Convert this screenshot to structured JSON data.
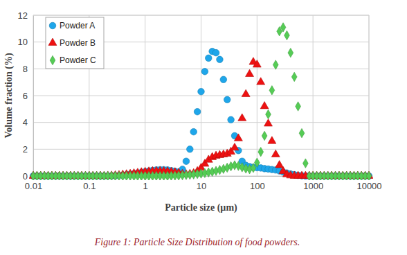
{
  "chart_data": {
    "type": "scatter",
    "caption": "Figure 1: Particle Size Distribution of food powders.",
    "x_label": "Particle size (µm)",
    "y_label": "Volume fraction (%)",
    "log": "x",
    "grid": true,
    "legend": "top-left",
    "xlim": [
      0.01,
      10000
    ],
    "xticks": [
      0.01,
      0.1,
      1,
      10,
      100,
      1000,
      10000
    ],
    "ylim": [
      0,
      12
    ],
    "yticks": [
      0,
      2,
      4,
      6,
      8,
      10,
      12
    ],
    "x": [
      0.01,
      0.01166,
      0.01359,
      0.01585,
      0.01848,
      0.02154,
      0.02512,
      0.02929,
      0.03415,
      0.03981,
      0.04642,
      0.05412,
      0.0631,
      0.07356,
      0.08577,
      0.1,
      0.1166,
      0.1359,
      0.1585,
      0.1848,
      0.2154,
      0.2512,
      0.2929,
      0.3415,
      0.3981,
      0.4642,
      0.5412,
      0.631,
      0.7356,
      0.8577,
      1,
      1.166,
      1.359,
      1.585,
      1.848,
      2.154,
      2.512,
      2.929,
      3.415,
      3.981,
      4.642,
      5.412,
      6.31,
      7.356,
      8.577,
      10,
      11.66,
      13.59,
      15.85,
      18.48,
      21.54,
      25.12,
      29.29,
      34.15,
      39.81,
      46.42,
      54.12,
      63.1,
      73.56,
      85.77,
      100,
      116.6,
      135.9,
      158.5,
      184.8,
      215.4,
      251.2,
      292.9,
      341.5,
      398.1,
      464.2,
      541.2,
      631,
      735.6,
      857.7,
      1000,
      1166,
      1359,
      1585,
      1848,
      2154,
      2512,
      2929,
      3415,
      3981,
      4642,
      5412,
      6310,
      7356,
      8577,
      10000
    ],
    "series": [
      {
        "name": "Powder A",
        "color": "#1ea6ea",
        "marker": "circle",
        "values": [
          0,
          0,
          0,
          0,
          0,
          0,
          0,
          0,
          0,
          0,
          0,
          0,
          0,
          0,
          0,
          0,
          0,
          0,
          0,
          0,
          0,
          0.01,
          0.02,
          0.04,
          0.06,
          0.09,
          0.13,
          0.17,
          0.22,
          0.27,
          0.32,
          0.37,
          0.42,
          0.45,
          0.47,
          0.47,
          0.45,
          0.4,
          0.35,
          0.3,
          0.5,
          1.1,
          2.0,
          3.3,
          4.8,
          6.3,
          7.8,
          8.8,
          9.3,
          9.2,
          8.7,
          7.2,
          5.7,
          4.2,
          3.0,
          1.9,
          1.1,
          0.8,
          0.7,
          0.65,
          0.62,
          0.6,
          0.55,
          0.52,
          0.48,
          0.45,
          0.38,
          0.3,
          0.22,
          0.15,
          0.1,
          0.05,
          0.02,
          0,
          0,
          0,
          0,
          0,
          0,
          0,
          0,
          0,
          0,
          0,
          0,
          0,
          0,
          0,
          0,
          0,
          0
        ]
      },
      {
        "name": "Powder B",
        "color": "#ee1111",
        "marker": "triangle",
        "values": [
          0,
          0,
          0,
          0,
          0,
          0,
          0,
          0,
          0,
          0,
          0,
          0,
          0,
          0,
          0,
          0,
          0,
          0,
          0,
          0,
          0.01,
          0.02,
          0.04,
          0.06,
          0.09,
          0.12,
          0.15,
          0.19,
          0.23,
          0.27,
          0.3,
          0.33,
          0.35,
          0.36,
          0.36,
          0.35,
          0.33,
          0.3,
          0.27,
          0.22,
          0.15,
          0.12,
          0.15,
          0.2,
          0.35,
          0.6,
          0.9,
          1.2,
          1.4,
          1.5,
          1.55,
          1.6,
          1.65,
          1.8,
          2.1,
          2.8,
          4.3,
          6.1,
          7.6,
          8.5,
          8.3,
          7.0,
          5.2,
          3.9,
          2.6,
          1.6,
          0.8,
          0.35,
          0.12,
          0.03,
          0,
          0,
          0,
          0,
          0,
          0,
          0,
          0,
          0,
          0,
          0,
          0,
          0,
          0,
          0,
          0,
          0,
          0,
          0,
          0,
          0
        ]
      },
      {
        "name": "Powder C",
        "color": "#55cc55",
        "marker": "diamond",
        "values": [
          0,
          0,
          0,
          0,
          0,
          0,
          0,
          0,
          0,
          0,
          0,
          0,
          0,
          0,
          0,
          0,
          0,
          0,
          0,
          0,
          0,
          0,
          0,
          0,
          0,
          0,
          0,
          0,
          0,
          0,
          0,
          0,
          0,
          0,
          0,
          0,
          0,
          0.01,
          0.02,
          0.03,
          0.05,
          0.07,
          0.09,
          0.12,
          0.15,
          0.18,
          0.22,
          0.27,
          0.32,
          0.38,
          0.45,
          0.53,
          0.62,
          0.72,
          0.8,
          0.75,
          0.65,
          0.55,
          0.5,
          0.6,
          1.0,
          1.8,
          3.0,
          4.6,
          6.4,
          8.3,
          10.8,
          11.1,
          10.5,
          9.2,
          7.4,
          5.2,
          3.2,
          0.95,
          0,
          0,
          0,
          0,
          0,
          0,
          0,
          0,
          0,
          0,
          0,
          0,
          0,
          0,
          0,
          0,
          0
        ]
      }
    ]
  }
}
